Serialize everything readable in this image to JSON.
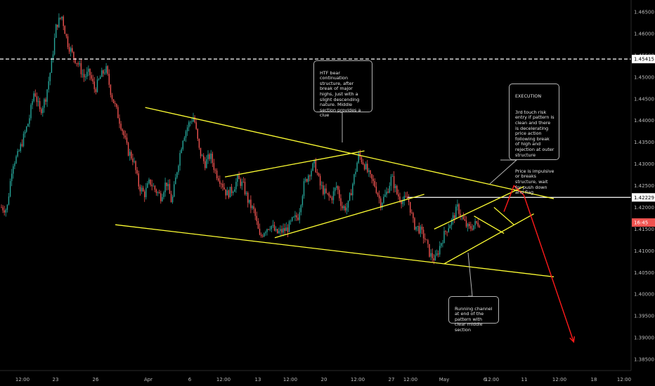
{
  "chart_data": {
    "type": "candlestick",
    "instrument_note": "",
    "ylim": [
      1.3825,
      1.4675
    ],
    "y_ticks": [
      "1.46500",
      "1.46000",
      "1.45500",
      "1.45000",
      "1.44500",
      "1.44000",
      "1.43500",
      "1.43000",
      "1.42500",
      "1.42000",
      "1.41500",
      "1.41000",
      "1.40500",
      "1.40000",
      "1.39500",
      "1.39000",
      "1.38500"
    ],
    "x_ticks": [
      "12:00",
      "23",
      "26",
      "Apr",
      "6",
      "12:00",
      "13",
      "12:00",
      "20",
      "12:00",
      "27",
      "12:00",
      "May",
      "6",
      "12:00",
      "11",
      "12:00",
      "18",
      "12:00"
    ],
    "price_tags": [
      {
        "label": "1.45415",
        "value": 1.45415,
        "color": "#ffffff",
        "text_color": "#000000"
      },
      {
        "label": "1.42229",
        "value": 1.42229,
        "color": "#ffffff",
        "text_color": "#000000"
      },
      {
        "label": "16:45",
        "value": 1.4165,
        "color": "#ef5350",
        "text_color": "#ffffff"
      }
    ],
    "horizontal_lines": [
      {
        "value": 1.45415,
        "style": "dashed",
        "color": "#ffffff"
      },
      {
        "value": 1.42229,
        "style": "solid",
        "color": "#ffffff"
      }
    ],
    "colors": {
      "bull": "#26a69a",
      "bear": "#ef5350",
      "pattern": "#ffff33",
      "projection": "#ff1a1a",
      "background": "#000000"
    },
    "candle_anchors": [
      [
        1.42,
        1.4195
      ],
      [
        1.43,
        1.432
      ],
      [
        1.436,
        1.44
      ],
      [
        1.447,
        1.442
      ],
      [
        1.445,
        1.452
      ],
      [
        1.462,
        1.464
      ],
      [
        1.458,
        1.455
      ],
      [
        1.453,
        1.45
      ],
      [
        1.451,
        1.447
      ],
      [
        1.45,
        1.452
      ],
      [
        1.446,
        1.442
      ],
      [
        1.438,
        1.433
      ],
      [
        1.431,
        1.425
      ],
      [
        1.423,
        1.426
      ],
      [
        1.424,
        1.4225
      ],
      [
        1.426,
        1.421
      ],
      [
        1.429,
        1.436
      ],
      [
        1.439,
        1.441
      ],
      [
        1.433,
        1.43
      ],
      [
        1.432,
        1.428
      ],
      [
        1.426,
        1.423
      ],
      [
        1.424,
        1.4265
      ],
      [
        1.425,
        1.421
      ],
      [
        1.419,
        1.413
      ],
      [
        1.415,
        1.416
      ],
      [
        1.414,
        1.4145
      ],
      [
        1.415,
        1.417
      ],
      [
        1.418,
        1.425
      ],
      [
        1.428,
        1.43
      ],
      [
        1.425,
        1.423
      ],
      [
        1.422,
        1.425
      ],
      [
        1.42,
        1.42
      ],
      [
        1.426,
        1.432
      ],
      [
        1.43,
        1.427
      ],
      [
        1.425,
        1.421
      ],
      [
        1.423,
        1.427
      ],
      [
        1.423,
        1.4215
      ],
      [
        1.422,
        1.416
      ],
      [
        1.415,
        1.413
      ],
      [
        1.409,
        1.408
      ],
      [
        1.412,
        1.415
      ],
      [
        1.417,
        1.42
      ],
      [
        1.417,
        1.415
      ],
      [
        1.416,
        1.4165
      ]
    ],
    "pattern_lines": [
      [
        [
          "2020-04-01",
          1.443
        ],
        [
          "2020-05-12",
          1.422
        ]
      ],
      [
        [
          "2020-03-29",
          1.416
        ],
        [
          "2020-05-12",
          1.404
        ]
      ],
      [
        [
          "2020-04-09",
          1.427
        ],
        [
          "2020-04-23",
          1.433
        ]
      ],
      [
        [
          "2020-04-14",
          1.413
        ],
        [
          "2020-04-29",
          1.423
        ]
      ],
      [
        [
          "2020-05-01",
          1.407
        ],
        [
          "2020-05-10",
          1.4185
        ]
      ],
      [
        [
          "2020-04-30",
          1.415
        ],
        [
          "2020-05-09",
          1.4248
        ]
      ],
      [
        [
          "2020-05-04",
          1.418
        ],
        [
          "2020-05-07",
          1.414
        ]
      ],
      [
        [
          "2020-05-06",
          1.42
        ],
        [
          "2020-05-08",
          1.416
        ]
      ]
    ],
    "projection_path": [
      [
        "2020-05-07",
        1.419
      ],
      [
        "2020-05-08",
        1.425
      ],
      [
        "2020-05-09",
        1.4228
      ],
      [
        "2020-05-14",
        1.389
      ]
    ]
  },
  "annotations": {
    "htf_note": "HTF bear continuation structure, after break of major highs, just with a slight descending nature. Middle section provides a clue",
    "execution_title": "EXECUTION",
    "execution_body": "3rd touch risk entry if pattern is clean and there is decelerating price action following break of high and rejection at outer structure",
    "execution_followup": "Price is impulsive or breaks structure, wait for push down and flag",
    "channel_note": "Running channel at end of the pattern with clear middle section"
  }
}
